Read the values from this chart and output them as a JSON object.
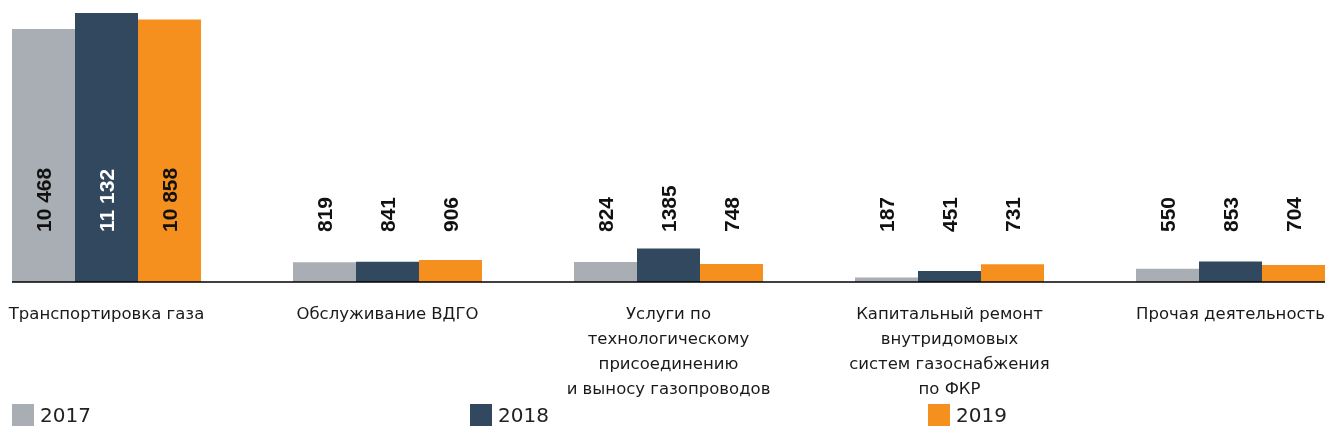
{
  "chart_data": {
    "type": "bar",
    "categories": [
      "Транспортировка газа",
      "Обслуживание ВДГО",
      "Услуги по\nтехнологическому\nприсоединению\nи выносу газопроводов",
      "Капитальный ремонт\nвнутридомовых\nсистем газоснабжения\nпо ФКР",
      "Прочая деятельность"
    ],
    "series": [
      {
        "name": "2017",
        "color": "#a8aeb4",
        "values": [
          10468,
          819,
          824,
          187,
          550
        ],
        "value_labels": [
          "10 468",
          "819",
          "824",
          "187",
          "550"
        ]
      },
      {
        "name": "2018",
        "color": "#32485f",
        "values": [
          11132,
          841,
          1385,
          451,
          853
        ],
        "value_labels": [
          "11 132",
          "841",
          "1385",
          "451",
          "853"
        ]
      },
      {
        "name": "2019",
        "color": "#f5901e",
        "values": [
          10858,
          906,
          748,
          731,
          704
        ],
        "value_labels": [
          "10 858",
          "906",
          "748",
          "731",
          "704"
        ]
      }
    ],
    "legend": "bottom",
    "tick_labels": "x"
  }
}
